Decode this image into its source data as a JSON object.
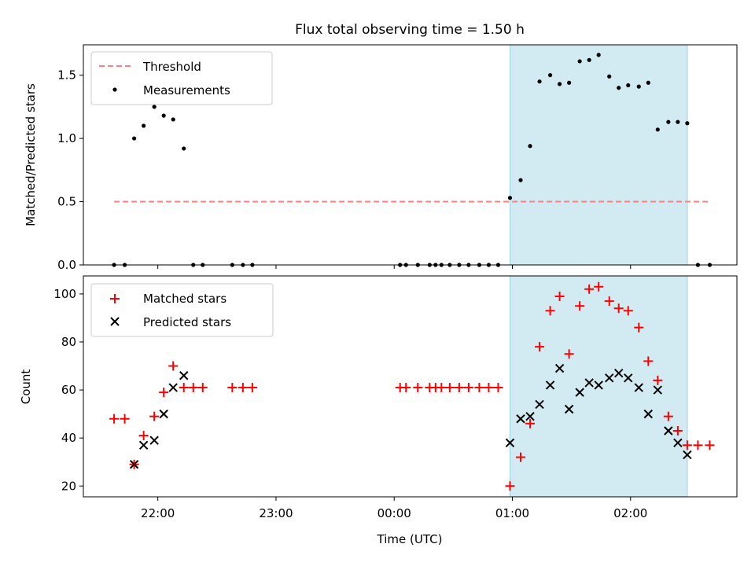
{
  "figure": {
    "title": "Flux total observing time = 1.50 h",
    "xlabel": "Time (UTC)",
    "x_tick_labels": [
      "22:00",
      "23:00",
      "00:00",
      "01:00",
      "02:00"
    ],
    "x_tick_hours": [
      22,
      23,
      24,
      25,
      26
    ],
    "xlim_hours": [
      21.37,
      26.9
    ],
    "shaded_span_hours": [
      24.98,
      26.48
    ],
    "shade_color": "#add8e6",
    "threshold_color": "#ff7f7f",
    "matched_color": "#ff0000",
    "predicted_color": "#000000"
  },
  "chart_data": [
    {
      "type": "scatter",
      "ylabel": "Matched/Predicted stars",
      "ylim": [
        0,
        1.74
      ],
      "y_ticks": [
        0.0,
        0.5,
        1.0,
        1.5
      ],
      "y_tick_labels": [
        "0.0",
        "0.5",
        "1.0",
        "1.5"
      ],
      "legend_position": "upper-left",
      "legend": [
        "Threshold",
        "Measurements"
      ],
      "threshold": {
        "name": "Threshold",
        "value": 0.5,
        "x_range": [
          21.63,
          26.67
        ]
      },
      "series": [
        {
          "name": "Measurements",
          "x": [
            21.63,
            21.72,
            21.8,
            21.88,
            21.97,
            22.05,
            22.13,
            22.22,
            22.3,
            22.38,
            22.63,
            22.72,
            22.8,
            24.05,
            24.1,
            24.2,
            24.3,
            24.35,
            24.4,
            24.47,
            24.55,
            24.63,
            24.72,
            24.8,
            24.88,
            24.98,
            25.07,
            25.15,
            25.23,
            25.32,
            25.4,
            25.48,
            25.57,
            25.65,
            25.73,
            25.82,
            25.9,
            25.98,
            26.07,
            26.15,
            26.23,
            26.32,
            26.4,
            26.48,
            26.57,
            26.67
          ],
          "y": [
            0.0,
            0.0,
            1.0,
            1.1,
            1.25,
            1.18,
            1.15,
            0.92,
            0.0,
            0.0,
            0.0,
            0.0,
            0.0,
            0.0,
            0.0,
            0.0,
            0.0,
            0.0,
            0.0,
            0.0,
            0.0,
            0.0,
            0.0,
            0.0,
            0.0,
            0.53,
            0.67,
            0.94,
            1.45,
            1.5,
            1.43,
            1.44,
            1.61,
            1.62,
            1.66,
            1.49,
            1.4,
            1.42,
            1.41,
            1.44,
            1.07,
            1.13,
            1.13,
            1.12,
            0.0,
            0.0
          ]
        }
      ]
    },
    {
      "type": "scatter",
      "ylabel": "Count",
      "ylim": [
        15.5,
        107.5
      ],
      "y_ticks": [
        20,
        40,
        60,
        80,
        100
      ],
      "y_tick_labels": [
        "20",
        "40",
        "60",
        "80",
        "100"
      ],
      "legend_position": "upper-left",
      "legend": [
        "Matched stars",
        "Predicted stars"
      ],
      "series": [
        {
          "name": "Matched stars",
          "marker": "plus",
          "x": [
            21.63,
            21.72,
            21.8,
            21.88,
            21.97,
            22.05,
            22.13,
            22.22,
            22.3,
            22.38,
            22.63,
            22.72,
            22.8,
            24.05,
            24.1,
            24.2,
            24.3,
            24.35,
            24.4,
            24.47,
            24.55,
            24.63,
            24.72,
            24.8,
            24.88,
            24.98,
            25.07,
            25.15,
            25.23,
            25.32,
            25.4,
            25.48,
            25.57,
            25.65,
            25.73,
            25.82,
            25.9,
            25.98,
            26.07,
            26.15,
            26.23,
            26.32,
            26.4,
            26.48,
            26.57,
            26.67
          ],
          "y": [
            48,
            48,
            29,
            41,
            49,
            59,
            70,
            61,
            61,
            61,
            61,
            61,
            61,
            61,
            61,
            61,
            61,
            61,
            61,
            61,
            61,
            61,
            61,
            61,
            61,
            20,
            32,
            46,
            78,
            93,
            99,
            75,
            95,
            102,
            103,
            97,
            94,
            93,
            86,
            72,
            64,
            49,
            43,
            37,
            37,
            37
          ]
        },
        {
          "name": "Predicted stars",
          "marker": "x",
          "x": [
            21.8,
            21.88,
            21.97,
            22.05,
            22.13,
            22.22,
            24.98,
            25.07,
            25.15,
            25.23,
            25.32,
            25.4,
            25.48,
            25.57,
            25.65,
            25.73,
            25.82,
            25.9,
            25.98,
            26.07,
            26.15,
            26.23,
            26.32,
            26.4,
            26.48
          ],
          "y": [
            29,
            37,
            39,
            50,
            61,
            66,
            38,
            48,
            49,
            54,
            62,
            69,
            52,
            59,
            63,
            62,
            65,
            67,
            65,
            61,
            50,
            60,
            43,
            38,
            33
          ]
        }
      ]
    }
  ]
}
